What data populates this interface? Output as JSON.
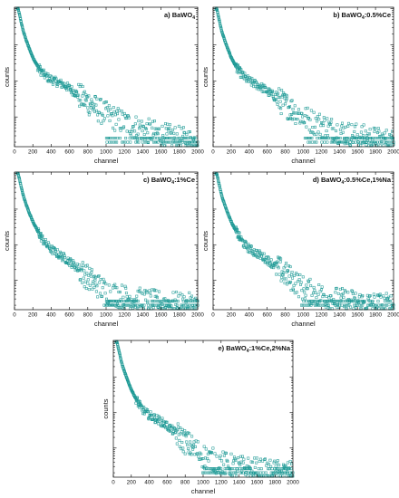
{
  "chart_data": [
    {
      "type": "scatter",
      "panel": "a",
      "label": {
        "prefix": "a) BaWO",
        "sub": "4",
        "suffix": ""
      },
      "xlabel": "channel",
      "ylabel": "counts",
      "xlim": [
        0,
        2000
      ],
      "xticks": [
        0,
        200,
        400,
        600,
        800,
        1000,
        1200,
        1400,
        1600,
        1800,
        2000
      ],
      "y_scale": "log",
      "y_tick_labels": "none",
      "series": [
        {
          "marker": "open-square",
          "color": "#1f9a96",
          "x": [
            40,
            60,
            80,
            100,
            130,
            160,
            200,
            250,
            300,
            350,
            400,
            450,
            500,
            550,
            600,
            650,
            700,
            750,
            800,
            850,
            900,
            950,
            1000,
            1100,
            1200,
            1300,
            1400,
            1500,
            1600,
            1700,
            1800,
            1900,
            2000
          ],
          "y": [
            10000,
            6000,
            3500,
            2200,
            1300,
            800,
            450,
            260,
            170,
            130,
            110,
            95,
            85,
            75,
            62,
            50,
            40,
            32,
            26,
            21,
            17,
            14,
            12,
            9,
            7,
            5.5,
            4.5,
            3.8,
            3.2,
            2.8,
            2.5,
            2.2,
            2.0
          ]
        }
      ]
    },
    {
      "type": "scatter",
      "panel": "b",
      "label": {
        "prefix": "b) BaWO",
        "sub": "4",
        "suffix": ":0.5%Ce"
      },
      "xlabel": "channel",
      "ylabel": "counts",
      "xlim": [
        0,
        2000
      ],
      "xticks": [
        0,
        200,
        400,
        600,
        800,
        1000,
        1200,
        1400,
        1600,
        1800,
        2000
      ],
      "y_scale": "log",
      "y_tick_labels": "none",
      "series": [
        {
          "marker": "open-square",
          "color": "#1f9a96",
          "x": [
            40,
            60,
            80,
            100,
            130,
            160,
            200,
            250,
            300,
            350,
            400,
            450,
            500,
            550,
            600,
            650,
            700,
            750,
            800,
            850,
            900,
            950,
            1000,
            1100,
            1200,
            1300,
            1400,
            1500,
            1600,
            1700,
            1800,
            1900,
            2000
          ],
          "y": [
            10000,
            6000,
            3500,
            2200,
            1300,
            800,
            450,
            260,
            170,
            125,
            100,
            85,
            75,
            64,
            52,
            42,
            34,
            27,
            22,
            18,
            15,
            12,
            10,
            7.5,
            6,
            4.8,
            4,
            3.4,
            3,
            2.7,
            2.4,
            2.2,
            2.0
          ]
        }
      ]
    },
    {
      "type": "scatter",
      "panel": "c",
      "label": {
        "prefix": "c) BaWO",
        "sub": "4",
        "suffix": ":1%Ce"
      },
      "xlabel": "channel",
      "ylabel": "counts",
      "xlim": [
        0,
        2000
      ],
      "xticks": [
        0,
        200,
        400,
        600,
        800,
        1000,
        1200,
        1400,
        1600,
        1800,
        2000
      ],
      "y_scale": "log",
      "y_tick_labels": "none",
      "series": [
        {
          "marker": "open-square",
          "color": "#1f9a96",
          "x": [
            40,
            60,
            80,
            100,
            130,
            160,
            200,
            250,
            300,
            350,
            400,
            450,
            500,
            550,
            600,
            650,
            700,
            750,
            800,
            850,
            900,
            950,
            1000,
            1100,
            1200,
            1300,
            1400,
            1500,
            1600,
            1700,
            1800,
            1900,
            2000
          ],
          "y": [
            10000,
            6000,
            3500,
            2200,
            1300,
            800,
            450,
            250,
            150,
            100,
            75,
            60,
            50,
            42,
            34,
            27,
            21,
            16,
            12,
            9.5,
            7.5,
            6,
            5,
            4,
            3.4,
            3,
            2.7,
            2.5,
            2.3,
            2.2,
            2.1,
            2.0,
            2.0
          ]
        }
      ]
    },
    {
      "type": "scatter",
      "panel": "d",
      "label": {
        "prefix": "d) BaWO",
        "sub": "4",
        "suffix": ":0.5%Ce,1%Na"
      },
      "xlabel": "channel",
      "ylabel": "counts",
      "xlim": [
        0,
        2000
      ],
      "xticks": [
        0,
        200,
        400,
        600,
        800,
        1000,
        1200,
        1400,
        1600,
        1800,
        2000
      ],
      "y_scale": "log",
      "y_tick_labels": "none",
      "series": [
        {
          "marker": "open-square",
          "color": "#1f9a96",
          "x": [
            40,
            60,
            80,
            100,
            130,
            160,
            200,
            250,
            300,
            350,
            400,
            450,
            500,
            550,
            600,
            650,
            700,
            750,
            800,
            850,
            900,
            950,
            1000,
            1100,
            1200,
            1300,
            1400,
            1500,
            1600,
            1700,
            1800,
            1900,
            2000
          ],
          "y": [
            10000,
            6000,
            3500,
            2200,
            1300,
            800,
            450,
            250,
            150,
            100,
            78,
            64,
            55,
            46,
            38,
            30,
            24,
            19,
            15,
            12,
            9.5,
            7.5,
            6,
            4.6,
            3.8,
            3.2,
            2.8,
            2.6,
            2.4,
            2.2,
            2.1,
            2.0,
            2.0
          ]
        }
      ]
    },
    {
      "type": "scatter",
      "panel": "e",
      "label": {
        "prefix": "e) BaWO",
        "sub": "4",
        "suffix": ":1%Ce,2%Na"
      },
      "xlabel": "channel",
      "ylabel": "counts",
      "xlim": [
        0,
        2000
      ],
      "xticks": [
        0,
        200,
        400,
        600,
        800,
        1000,
        1200,
        1400,
        1600,
        1800,
        2000
      ],
      "y_scale": "log",
      "y_tick_labels": "none",
      "series": [
        {
          "marker": "open-square",
          "color": "#1f9a96",
          "x": [
            40,
            60,
            80,
            100,
            130,
            160,
            200,
            250,
            300,
            350,
            400,
            450,
            500,
            550,
            600,
            650,
            700,
            750,
            800,
            850,
            900,
            950,
            1000,
            1100,
            1200,
            1300,
            1400,
            1500,
            1600,
            1700,
            1800,
            1900,
            2000
          ],
          "y": [
            10000,
            6000,
            3500,
            2200,
            1300,
            800,
            450,
            250,
            150,
            105,
            85,
            72,
            62,
            52,
            42,
            33,
            26,
            20,
            15,
            12,
            9.5,
            7.5,
            6,
            4.6,
            3.8,
            3.2,
            2.8,
            2.6,
            2.4,
            2.2,
            2.1,
            2.0,
            2.0
          ]
        }
      ]
    }
  ]
}
